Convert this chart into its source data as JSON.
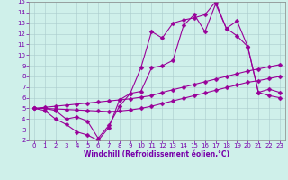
{
  "xlabel": "Windchill (Refroidissement éolien,°C)",
  "bg_color": "#cff0ea",
  "line_color": "#990099",
  "xlim": [
    -0.5,
    23.5
  ],
  "ylim": [
    2,
    15
  ],
  "xticks": [
    0,
    1,
    2,
    3,
    4,
    5,
    6,
    7,
    8,
    9,
    10,
    11,
    12,
    13,
    14,
    15,
    16,
    17,
    18,
    19,
    20,
    21,
    22,
    23
  ],
  "yticks": [
    2,
    3,
    4,
    5,
    6,
    7,
    8,
    9,
    10,
    11,
    12,
    13,
    14,
    15
  ],
  "series": [
    [
      5.0,
      5.0,
      4.8,
      4.0,
      4.2,
      3.8,
      2.2,
      3.4,
      5.2,
      6.4,
      8.8,
      12.2,
      11.6,
      13.0,
      13.3,
      13.5,
      13.8,
      15.0,
      12.5,
      13.2,
      10.8,
      6.5,
      6.2,
      6.0
    ],
    [
      5.0,
      4.8,
      4.0,
      3.5,
      2.8,
      2.5,
      2.0,
      3.2,
      5.8,
      6.4,
      6.6,
      8.8,
      9.0,
      9.5,
      12.8,
      13.8,
      12.2,
      14.8,
      12.5,
      11.8,
      10.8,
      6.5,
      6.8,
      6.5
    ],
    [
      5.0,
      5.1,
      5.2,
      5.3,
      5.4,
      5.5,
      5.6,
      5.7,
      5.8,
      5.9,
      6.05,
      6.2,
      6.5,
      6.75,
      7.0,
      7.25,
      7.5,
      7.75,
      8.0,
      8.25,
      8.5,
      8.7,
      8.9,
      9.1
    ],
    [
      5.0,
      5.0,
      4.95,
      4.9,
      4.85,
      4.8,
      4.75,
      4.7,
      4.75,
      4.85,
      5.0,
      5.2,
      5.45,
      5.7,
      5.95,
      6.2,
      6.45,
      6.7,
      6.95,
      7.2,
      7.45,
      7.6,
      7.8,
      8.0
    ]
  ],
  "xlabel_color": "#7700aa",
  "tick_color": "#7700aa",
  "grid_color": "#aacccc",
  "spine_color": "#888888",
  "linewidth": 0.8,
  "markersize": 2.5,
  "tick_fontsize": 5.0,
  "xlabel_fontsize": 5.5
}
